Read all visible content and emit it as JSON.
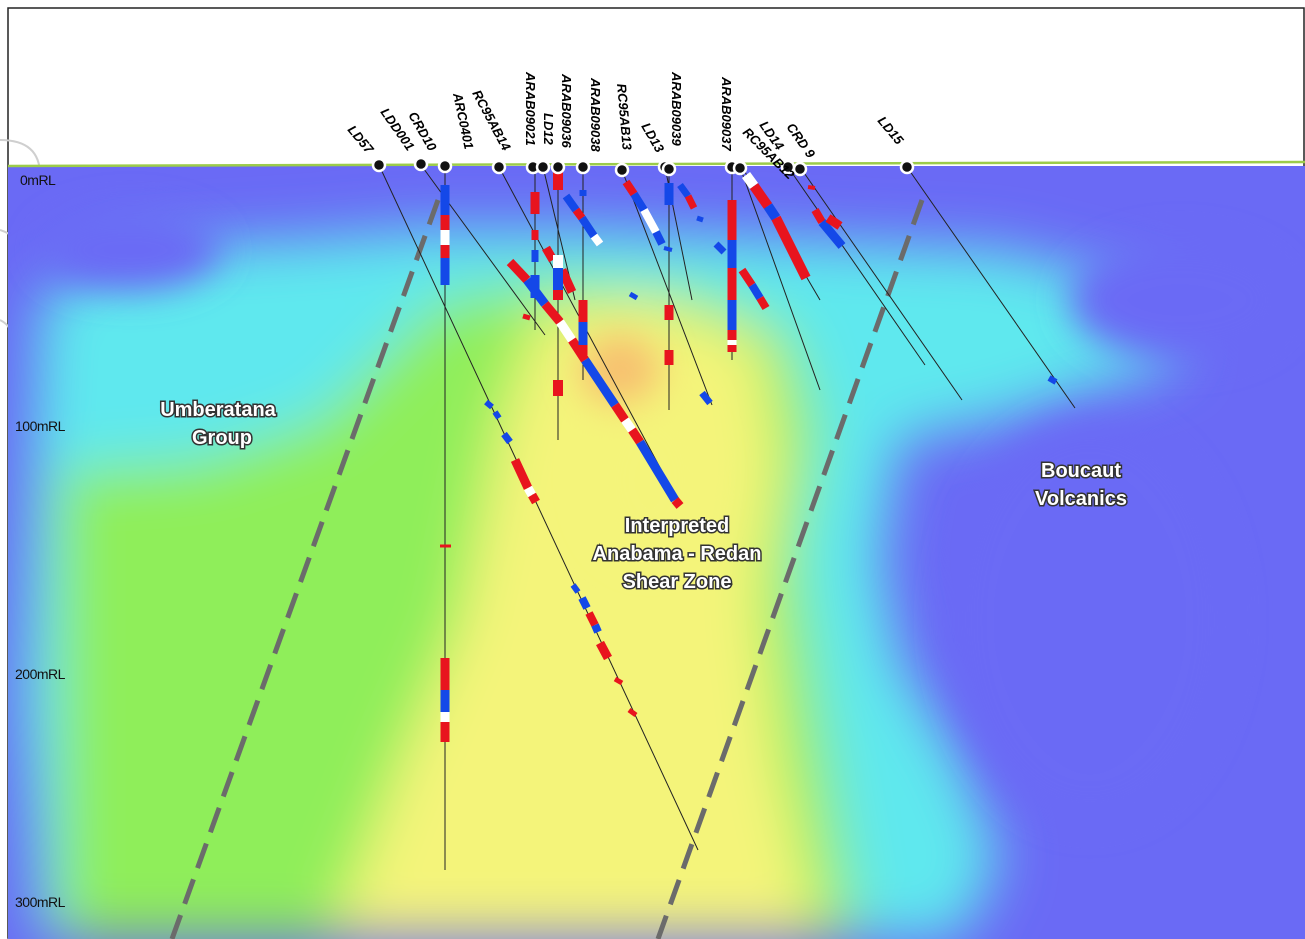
{
  "section": {
    "rl_labels": [
      "0mRL",
      "100mRL",
      "200mRL",
      "300mRL"
    ],
    "units": {
      "umberatana": [
        "Umberatana",
        "Group"
      ],
      "shear_zone": [
        "Interpreted",
        "Anabama - Redan",
        "Shear Zone"
      ],
      "boucaut": [
        "Boucaut",
        "Volcanics"
      ]
    },
    "holes": [
      "LD57",
      "LDD001",
      "CRD10",
      "ARC0401",
      "RC95AB14",
      "ARAB09021",
      "LD12",
      "ARAB09036",
      "ARAB09038",
      "RC95AB13",
      "LD13",
      "ARAB09039",
      "ARAB09037",
      "RC95AB12",
      "LD14",
      "CRD 9",
      "LD15"
    ],
    "colors": {
      "background_blue": "#6a6af5",
      "cyan": "#5fe8ee",
      "green": "#8fee5a",
      "yellow": "#f4f47a",
      "interval_red": "#e8141e",
      "interval_blue": "#1448e8",
      "interval_white": "#ffffff",
      "fault_grey": "#6b6b6b",
      "surface_green": "#9ccc4a"
    }
  }
}
